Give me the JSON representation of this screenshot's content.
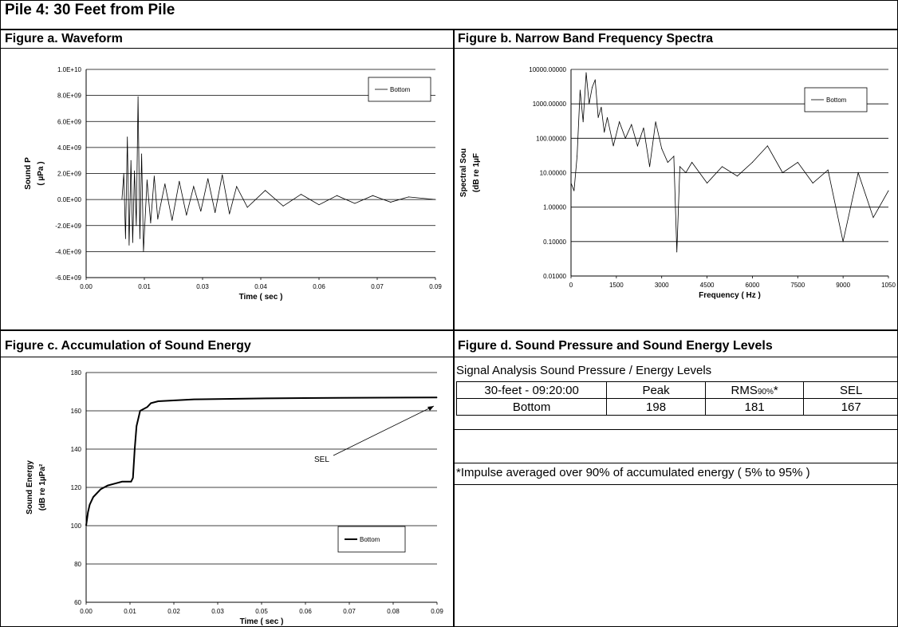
{
  "page_title": "Pile 4: 30 Feet from Pile",
  "figures": {
    "a": "Figure a. Waveform",
    "b": "Figure b. Narrow Band Frequency Spectra",
    "c": "Figure c. Accumulation of Sound Energy",
    "d": "Figure d. Sound Pressure and Sound Energy Levels"
  },
  "table_d": {
    "subtitle": "Signal Analysis Sound Pressure / Energy Levels",
    "header": [
      "30-feet - 09:20:00",
      "Peak",
      "RMS",
      "SEL"
    ],
    "rms_sub": "90%",
    "rms_star": "*",
    "row": [
      "Bottom",
      "198",
      "181",
      "167"
    ],
    "footnote": "*Impulse averaged over 90% of accumulated energy ( 5% to 95% )"
  },
  "chart_data": [
    {
      "id": "waveform",
      "type": "line",
      "xlabel": "Time ( sec )",
      "ylabel_1": "Sound P",
      "ylabel_2": "( µPa )",
      "xticks": [
        "0.00",
        "0.01",
        "0.03",
        "0.04",
        "0.06",
        "0.07",
        "0.09"
      ],
      "yticks": [
        "1.0E+10",
        "8.0E+09",
        "6.0E+09",
        "4.0E+09",
        "2.0E+09",
        "0.0E+00",
        "-2.0E+09",
        "-4.0E+09",
        "-6.0E+09"
      ],
      "xlim": [
        0,
        0.0975
      ],
      "ylim": [
        -6000000000.0,
        10000000000.0
      ],
      "grid": true,
      "legend_position": "top-right",
      "series": [
        {
          "name": "Bottom",
          "x": [
            0.01,
            0.0105,
            0.011,
            0.0115,
            0.012,
            0.0125,
            0.013,
            0.0135,
            0.014,
            0.0145,
            0.015,
            0.0155,
            0.016,
            0.017,
            0.018,
            0.019,
            0.02,
            0.022,
            0.024,
            0.026,
            0.028,
            0.03,
            0.032,
            0.034,
            0.036,
            0.038,
            0.04,
            0.042,
            0.045,
            0.05,
            0.055,
            0.06,
            0.065,
            0.07,
            0.075,
            0.08,
            0.085,
            0.09,
            0.0975
          ],
          "y": [
            0,
            2000000000.0,
            -3000000000.0,
            4800000000.0,
            -3500000000.0,
            3000000000.0,
            -3300000000.0,
            2200000000.0,
            -2000000000.0,
            7900000000.0,
            -3000000000.0,
            3500000000.0,
            -4000000000.0,
            1500000000.0,
            -1800000000.0,
            1800000000.0,
            -1500000000.0,
            1200000000.0,
            -1600000000.0,
            1400000000.0,
            -1200000000.0,
            1000000000.0,
            -900000000.0,
            1600000000.0,
            -1000000000.0,
            1900000000.0,
            -1100000000.0,
            1000000000.0,
            -600000000.0,
            700000000.0,
            -500000000.0,
            400000000.0,
            -400000000.0,
            300000000.0,
            -300000000.0,
            300000000.0,
            -200000000.0,
            200000000.0,
            0
          ]
        }
      ]
    },
    {
      "id": "spectra",
      "type": "line",
      "xlabel": "Frequency ( Hz )",
      "ylabel_1": "Spectral Sou",
      "ylabel_2": "(dB re 1µF",
      "xticks": [
        "0",
        "1500",
        "3000",
        "4500",
        "6000",
        "7500",
        "9000",
        "1050"
      ],
      "yticks": [
        "10000.00000",
        "1000.00000",
        "100.00000",
        "10.00000",
        "1.00000",
        "0.10000",
        "0.01000"
      ],
      "xlim": [
        0,
        10500
      ],
      "ylim_log": [
        0.01,
        10000
      ],
      "grid": true,
      "legend_position": "top-right",
      "series": [
        {
          "name": "Bottom",
          "x": [
            0,
            100,
            200,
            300,
            400,
            500,
            600,
            700,
            800,
            900,
            1000,
            1100,
            1200,
            1400,
            1600,
            1800,
            2000,
            2200,
            2400,
            2600,
            2800,
            3000,
            3200,
            3400,
            3500,
            3600,
            3800,
            4000,
            4500,
            5000,
            5500,
            6000,
            6500,
            7000,
            7500,
            8000,
            8500,
            9000,
            9500,
            10000,
            10500
          ],
          "y": [
            5,
            3,
            30,
            2500,
            300,
            8000,
            1000,
            3000,
            5000,
            400,
            800,
            150,
            400,
            60,
            300,
            100,
            250,
            60,
            200,
            15,
            300,
            50,
            20,
            30,
            0.05,
            15,
            10,
            20,
            5,
            15,
            8,
            20,
            60,
            10,
            20,
            5,
            12,
            0.1,
            10,
            0.5,
            3
          ]
        }
      ]
    },
    {
      "id": "energy",
      "type": "line",
      "xlabel": "Time ( sec )",
      "ylabel_1": "Sound Energy",
      "ylabel_2": "(dB re 1µPa²",
      "xticks": [
        "0.00",
        "0.01",
        "0.02",
        "0.03",
        "0.05",
        "0.06",
        "0.07",
        "0.08",
        "0.09"
      ],
      "yticks": [
        "180",
        "160",
        "140",
        "120",
        "100",
        "80",
        "60"
      ],
      "xlim": [
        0,
        0.0975
      ],
      "ylim": [
        60,
        180
      ],
      "grid": true,
      "legend_position": "bottom-right",
      "annotation": "SEL",
      "series": [
        {
          "name": "Bottom",
          "x": [
            0,
            0.0005,
            0.001,
            0.002,
            0.004,
            0.006,
            0.008,
            0.01,
            0.0125,
            0.013,
            0.0135,
            0.014,
            0.015,
            0.016,
            0.017,
            0.018,
            0.02,
            0.03,
            0.05,
            0.07,
            0.0975
          ],
          "y": [
            100,
            107,
            111,
            115,
            119,
            121,
            122,
            123,
            123,
            125,
            140,
            152,
            160,
            161,
            162,
            164,
            165,
            166,
            166.5,
            166.8,
            167
          ]
        }
      ]
    }
  ]
}
